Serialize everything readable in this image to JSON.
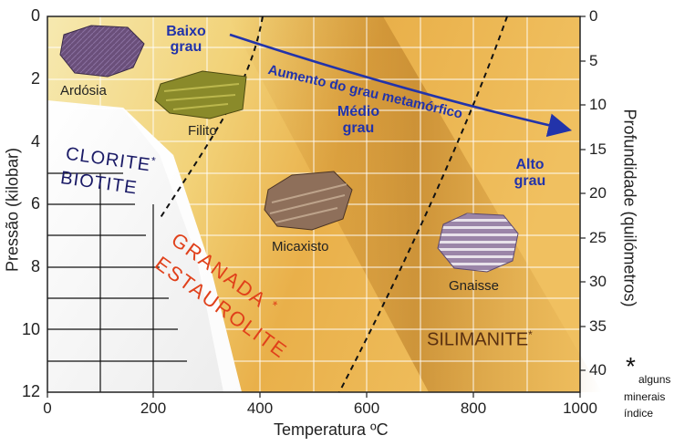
{
  "axes": {
    "x_label": "Temperatura ºC",
    "y_left_label": "Pressão (kilobar)",
    "y_right_label": "Profundidade (quilómetros)",
    "x_ticks": [
      "0",
      "200",
      "400",
      "600",
      "800",
      "1000"
    ],
    "y_left_ticks": [
      "0",
      "2",
      "4",
      "6",
      "8",
      "10",
      "12"
    ],
    "y_right_ticks": [
      "0",
      "5",
      "10",
      "15",
      "20",
      "25",
      "30",
      "35",
      "40"
    ]
  },
  "grades": {
    "low": "Baixo grau",
    "medium": "Médio grau",
    "high": "Alto grau",
    "arrow_label": "Aumento do grau metamórfico"
  },
  "rocks": {
    "ardosia": "Ardósia",
    "filito": "Filito",
    "micaxisto": "Micaxisto",
    "gnaisse": "Gnaisse"
  },
  "minerals": {
    "clorite": "CLORITE",
    "biotite": "BIOTITE",
    "granada": "GRANADA",
    "estaurolite": "ESTAUROLITE",
    "silimanite": "SILIMANITE",
    "asterisk": "*"
  },
  "note": {
    "asterisk": "*",
    "line1": "alguns",
    "line2": "minerais",
    "line3": "índice"
  },
  "colors": {
    "grade_text": "#2233aa",
    "mineral_red": "#e0401a",
    "mineral_navy": "#1a1a66",
    "silimanite": "#5a3010"
  }
}
